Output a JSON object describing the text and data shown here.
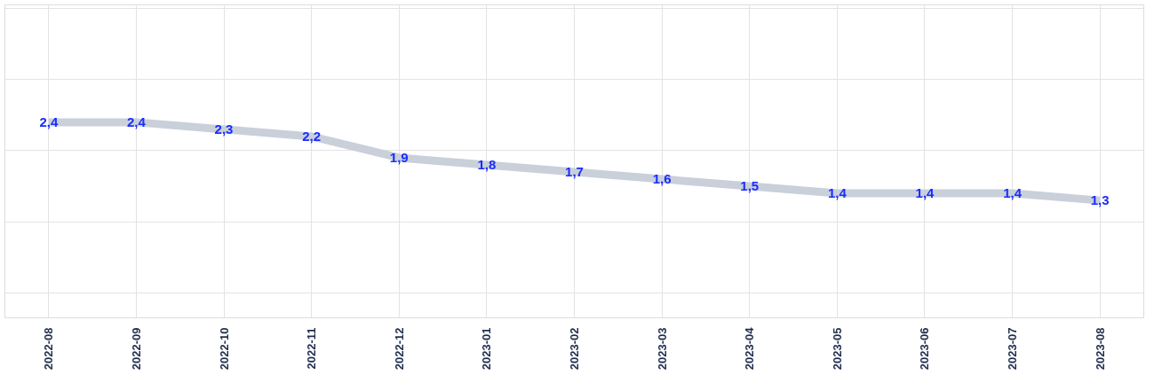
{
  "chart_data": {
    "type": "line",
    "categories": [
      "2022-08",
      "2022-09",
      "2022-10",
      "2022-11",
      "2022-12",
      "2023-01",
      "2023-02",
      "2023-03",
      "2023-04",
      "2023-05",
      "2023-06",
      "2023-07",
      "2023-08"
    ],
    "series": [
      {
        "color": "#c9d0da",
        "values": [
          2.4,
          2.4,
          2.3,
          2.2,
          1.9,
          1.8,
          1.7,
          1.6,
          1.5,
          1.4,
          1.4,
          1.4,
          1.3
        ],
        "value_labels": [
          "2,4",
          "2,4",
          "2,3",
          "2,2",
          "1,9",
          "1,8",
          "1,7",
          "1,6",
          "1,5",
          "1,4",
          "1,4",
          "1,4",
          "1,3"
        ]
      }
    ],
    "tick_labels": "x",
    "grid": true,
    "marker": "none",
    "line_style": "solid"
  }
}
